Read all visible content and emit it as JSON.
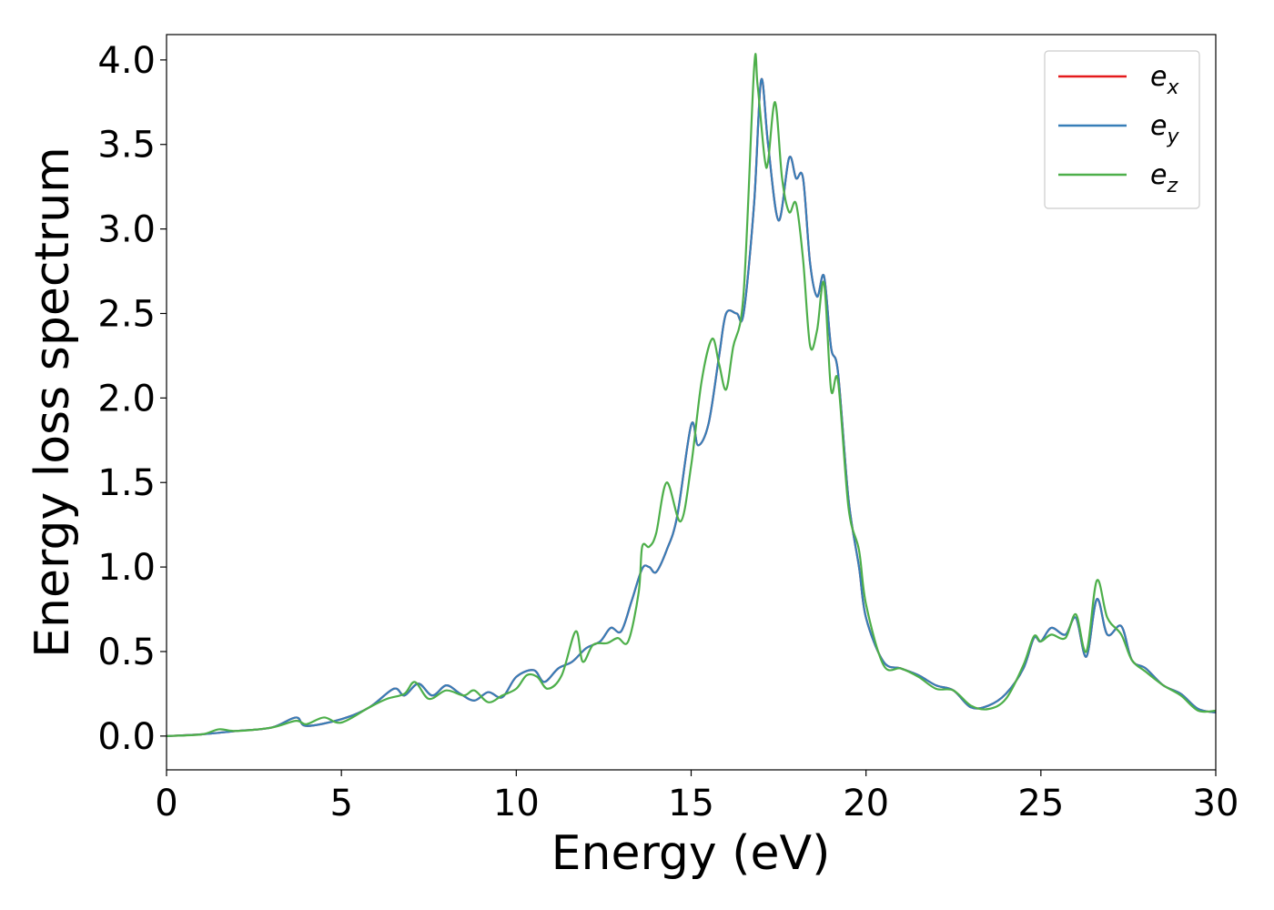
{
  "chart_data": {
    "type": "line",
    "xlabel": "Energy (eV)",
    "ylabel": "Energy loss spectrum",
    "xlim": [
      0,
      30
    ],
    "ylim": [
      -0.2,
      4.15
    ],
    "xticks": [
      0,
      5,
      10,
      15,
      20,
      25,
      30
    ],
    "xtick_labels": [
      "0",
      "5",
      "10",
      "15",
      "20",
      "25",
      "30"
    ],
    "yticks": [
      0.0,
      0.5,
      1.0,
      1.5,
      2.0,
      2.5,
      3.0,
      3.5,
      4.0
    ],
    "ytick_labels": [
      "0.0",
      "0.5",
      "1.0",
      "1.5",
      "2.0",
      "2.5",
      "3.0",
      "3.5",
      "4.0"
    ],
    "grid": false,
    "legend_position": "top-right",
    "series": [
      {
        "name": "e",
        "subscript": "x",
        "color": "#e41a1c",
        "x": [
          0,
          1,
          2,
          3,
          3.7,
          4,
          5,
          5.8,
          6.5,
          6.8,
          7.2,
          7.6,
          8.0,
          8.4,
          8.8,
          9.2,
          9.6,
          10.0,
          10.5,
          10.8,
          11.2,
          11.6,
          12.0,
          12.4,
          12.7,
          13.0,
          13.3,
          13.6,
          13.8,
          14.0,
          14.3,
          14.6,
          15.0,
          15.2,
          15.5,
          15.8,
          16.0,
          16.3,
          16.5,
          16.8,
          17.0,
          17.2,
          17.5,
          17.8,
          18.0,
          18.2,
          18.4,
          18.6,
          18.8,
          19.0,
          19.2,
          19.5,
          19.8,
          20.0,
          20.5,
          21.0,
          21.5,
          22.0,
          22.5,
          23.0,
          23.5,
          24.0,
          24.5,
          24.8,
          25.0,
          25.3,
          25.7,
          26.0,
          26.3,
          26.6,
          26.9,
          27.3,
          27.6,
          28.0,
          28.5,
          29.0,
          29.5,
          30.0
        ],
        "y": [
          0.0,
          0.01,
          0.03,
          0.05,
          0.11,
          0.06,
          0.1,
          0.17,
          0.28,
          0.24,
          0.31,
          0.24,
          0.3,
          0.25,
          0.21,
          0.26,
          0.23,
          0.35,
          0.39,
          0.32,
          0.4,
          0.44,
          0.52,
          0.56,
          0.64,
          0.62,
          0.8,
          0.99,
          1.0,
          0.97,
          1.1,
          1.3,
          1.84,
          1.72,
          1.85,
          2.25,
          2.5,
          2.5,
          2.5,
          3.15,
          3.88,
          3.5,
          3.05,
          3.42,
          3.3,
          3.3,
          2.8,
          2.6,
          2.72,
          2.3,
          2.15,
          1.4,
          1.0,
          0.7,
          0.44,
          0.4,
          0.36,
          0.3,
          0.27,
          0.17,
          0.18,
          0.25,
          0.4,
          0.58,
          0.56,
          0.64,
          0.6,
          0.7,
          0.47,
          0.81,
          0.6,
          0.65,
          0.45,
          0.4,
          0.3,
          0.25,
          0.16,
          0.14
        ]
      },
      {
        "name": "e",
        "subscript": "y",
        "color": "#377eb8",
        "x": [
          0,
          1,
          2,
          3,
          3.7,
          4,
          5,
          5.8,
          6.5,
          6.8,
          7.2,
          7.6,
          8.0,
          8.4,
          8.8,
          9.2,
          9.6,
          10.0,
          10.5,
          10.8,
          11.2,
          11.6,
          12.0,
          12.4,
          12.7,
          13.0,
          13.3,
          13.6,
          13.8,
          14.0,
          14.3,
          14.6,
          15.0,
          15.2,
          15.5,
          15.8,
          16.0,
          16.3,
          16.5,
          16.8,
          17.0,
          17.2,
          17.5,
          17.8,
          18.0,
          18.2,
          18.4,
          18.6,
          18.8,
          19.0,
          19.2,
          19.5,
          19.8,
          20.0,
          20.5,
          21.0,
          21.5,
          22.0,
          22.5,
          23.0,
          23.5,
          24.0,
          24.5,
          24.8,
          25.0,
          25.3,
          25.7,
          26.0,
          26.3,
          26.6,
          26.9,
          27.3,
          27.6,
          28.0,
          28.5,
          29.0,
          29.5,
          30.0
        ],
        "y": [
          0.0,
          0.01,
          0.03,
          0.05,
          0.11,
          0.06,
          0.1,
          0.17,
          0.28,
          0.24,
          0.31,
          0.24,
          0.3,
          0.25,
          0.21,
          0.26,
          0.23,
          0.35,
          0.39,
          0.32,
          0.4,
          0.44,
          0.52,
          0.56,
          0.64,
          0.62,
          0.8,
          0.99,
          1.0,
          0.97,
          1.1,
          1.3,
          1.84,
          1.72,
          1.85,
          2.25,
          2.5,
          2.5,
          2.5,
          3.15,
          3.88,
          3.5,
          3.05,
          3.42,
          3.3,
          3.3,
          2.8,
          2.6,
          2.72,
          2.3,
          2.15,
          1.4,
          1.0,
          0.7,
          0.44,
          0.4,
          0.36,
          0.3,
          0.27,
          0.17,
          0.18,
          0.25,
          0.4,
          0.58,
          0.56,
          0.64,
          0.6,
          0.7,
          0.47,
          0.81,
          0.6,
          0.65,
          0.45,
          0.4,
          0.3,
          0.25,
          0.16,
          0.14
        ]
      },
      {
        "name": "e",
        "subscript": "z",
        "color": "#4daf4a",
        "x": [
          0,
          1,
          1.5,
          2,
          3,
          3.7,
          4,
          4.5,
          5,
          5.8,
          6.3,
          6.8,
          7.1,
          7.5,
          8.0,
          8.5,
          8.8,
          9.2,
          9.6,
          10.0,
          10.3,
          10.6,
          10.9,
          11.3,
          11.7,
          11.9,
          12.2,
          12.6,
          12.9,
          13.2,
          13.5,
          13.6,
          13.8,
          14.0,
          14.3,
          14.7,
          15.0,
          15.3,
          15.6,
          15.8,
          16.0,
          16.2,
          16.5,
          16.8,
          16.9,
          17.1,
          17.2,
          17.4,
          17.6,
          17.8,
          18.0,
          18.2,
          18.4,
          18.6,
          18.8,
          19.0,
          19.2,
          19.5,
          19.8,
          20.0,
          20.5,
          21.0,
          21.5,
          22.0,
          22.5,
          23.0,
          23.5,
          24.0,
          24.5,
          24.8,
          25.0,
          25.3,
          25.7,
          26.0,
          26.3,
          26.6,
          26.9,
          27.3,
          27.6,
          28.0,
          28.5,
          29.0,
          29.5,
          30.0
        ],
        "y": [
          0.0,
          0.01,
          0.04,
          0.03,
          0.05,
          0.09,
          0.07,
          0.11,
          0.08,
          0.17,
          0.22,
          0.25,
          0.32,
          0.22,
          0.27,
          0.24,
          0.27,
          0.2,
          0.24,
          0.28,
          0.36,
          0.35,
          0.28,
          0.36,
          0.62,
          0.44,
          0.54,
          0.55,
          0.58,
          0.56,
          0.85,
          1.12,
          1.12,
          1.2,
          1.5,
          1.27,
          1.6,
          2.1,
          2.35,
          2.2,
          2.05,
          2.3,
          2.62,
          3.95,
          3.85,
          3.42,
          3.4,
          3.75,
          3.3,
          3.1,
          3.15,
          2.82,
          2.31,
          2.4,
          2.68,
          2.05,
          2.1,
          1.35,
          1.1,
          0.78,
          0.42,
          0.4,
          0.35,
          0.28,
          0.27,
          0.18,
          0.16,
          0.22,
          0.42,
          0.59,
          0.56,
          0.6,
          0.58,
          0.72,
          0.5,
          0.92,
          0.7,
          0.6,
          0.45,
          0.38,
          0.3,
          0.24,
          0.15,
          0.15
        ]
      }
    ]
  }
}
